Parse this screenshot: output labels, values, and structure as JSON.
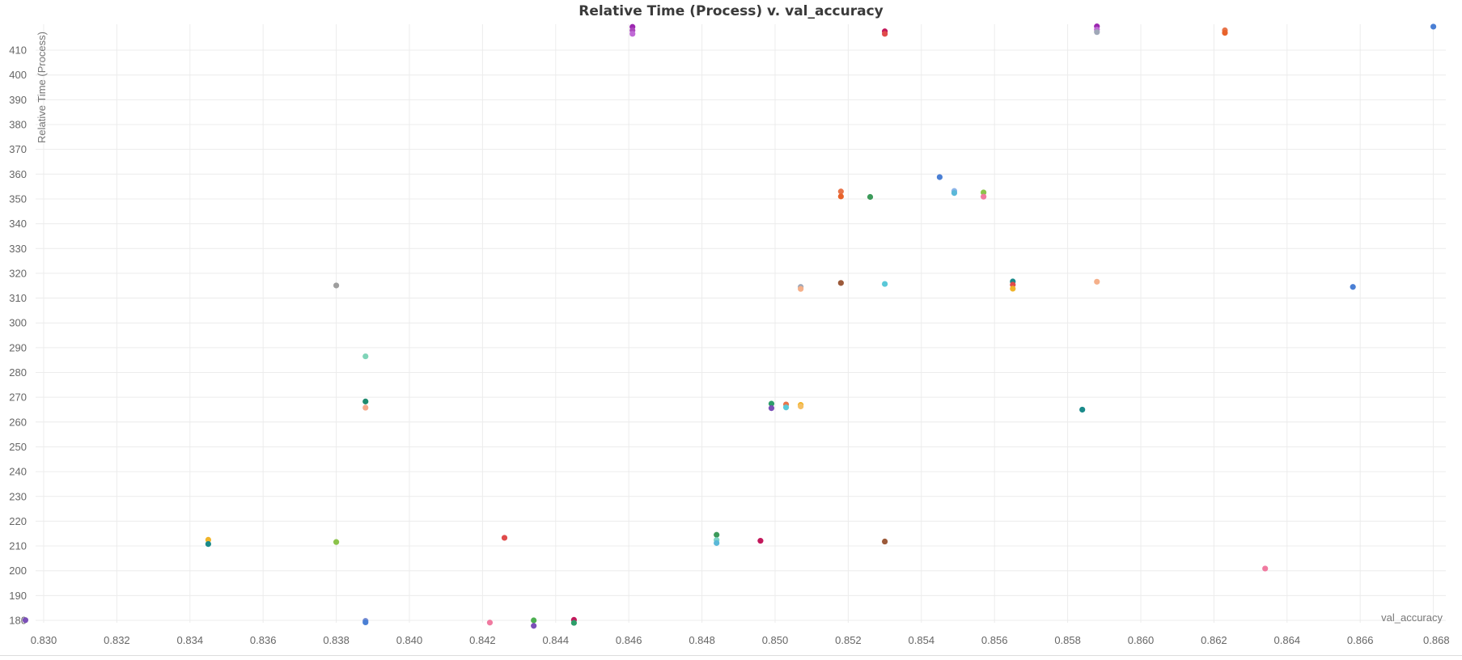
{
  "chart_data": {
    "type": "scatter",
    "title": "Relative Time (Process) v. val_accuracy",
    "xlabel": "val_accuracy",
    "ylabel": "Relative Time (Process)",
    "xlim": [
      0.8295,
      0.868
    ],
    "ylim": [
      177,
      420
    ],
    "xticks": [
      "0.830",
      "0.832",
      "0.834",
      "0.836",
      "0.838",
      "0.840",
      "0.842",
      "0.844",
      "0.846",
      "0.848",
      "0.850",
      "0.852",
      "0.854",
      "0.856",
      "0.858",
      "0.860",
      "0.862",
      "0.864",
      "0.866",
      "0.868"
    ],
    "yticks": [
      "180",
      "190",
      "200",
      "210",
      "220",
      "230",
      "240",
      "250",
      "260",
      "270",
      "280",
      "290",
      "300",
      "310",
      "320",
      "330",
      "340",
      "350",
      "360",
      "370",
      "380",
      "390",
      "400",
      "410"
    ],
    "grid": true,
    "points": [
      {
        "x": 0.8295,
        "y": 180.1,
        "color": "#7b4fb8"
      },
      {
        "x": 0.8345,
        "y": 212.5,
        "color": "#f0b429"
      },
      {
        "x": 0.8345,
        "y": 210.8,
        "color": "#1a8a8a"
      },
      {
        "x": 0.838,
        "y": 315.1,
        "color": "#9e9e9e"
      },
      {
        "x": 0.838,
        "y": 211.6,
        "color": "#8bc34a"
      },
      {
        "x": 0.8388,
        "y": 286.5,
        "color": "#7fd4b8"
      },
      {
        "x": 0.8388,
        "y": 268.3,
        "color": "#1e8a6e"
      },
      {
        "x": 0.8388,
        "y": 265.8,
        "color": "#f5a98a"
      },
      {
        "x": 0.8388,
        "y": 179.8,
        "color": "#7b8fd4"
      },
      {
        "x": 0.8388,
        "y": 179.2,
        "color": "#4a7fd4"
      },
      {
        "x": 0.8422,
        "y": 179.1,
        "color": "#f07aa0"
      },
      {
        "x": 0.8426,
        "y": 213.3,
        "color": "#e04b4b"
      },
      {
        "x": 0.8434,
        "y": 180.0,
        "color": "#4caf50"
      },
      {
        "x": 0.8434,
        "y": 177.8,
        "color": "#7b4fb8"
      },
      {
        "x": 0.8445,
        "y": 180.2,
        "color": "#c2185b"
      },
      {
        "x": 0.8445,
        "y": 179.0,
        "color": "#2e9e6a"
      },
      {
        "x": 0.8461,
        "y": 419.4,
        "color": "#9c27b0"
      },
      {
        "x": 0.8461,
        "y": 418.0,
        "color": "#ab47bc"
      },
      {
        "x": 0.8461,
        "y": 416.6,
        "color": "#c06ad6"
      },
      {
        "x": 0.8484,
        "y": 214.5,
        "color": "#3c9a5a"
      },
      {
        "x": 0.8484,
        "y": 212.4,
        "color": "#7fd4c8"
      },
      {
        "x": 0.8484,
        "y": 211.2,
        "color": "#5ab8d8"
      },
      {
        "x": 0.8496,
        "y": 212.1,
        "color": "#c2185b"
      },
      {
        "x": 0.8499,
        "y": 267.4,
        "color": "#2e9e6a"
      },
      {
        "x": 0.8499,
        "y": 265.6,
        "color": "#7b4fb8"
      },
      {
        "x": 0.8503,
        "y": 267.1,
        "color": "#e8744a"
      },
      {
        "x": 0.8503,
        "y": 265.9,
        "color": "#5ac8d8"
      },
      {
        "x": 0.8507,
        "y": 266.9,
        "color": "#f0b429"
      },
      {
        "x": 0.8507,
        "y": 266.3,
        "color": "#f5c065"
      },
      {
        "x": 0.8507,
        "y": 314.5,
        "color": "#a0a8b8"
      },
      {
        "x": 0.8507,
        "y": 313.7,
        "color": "#f5b08a"
      },
      {
        "x": 0.8518,
        "y": 353.0,
        "color": "#e8744a"
      },
      {
        "x": 0.8518,
        "y": 351.0,
        "color": "#e8622a"
      },
      {
        "x": 0.8518,
        "y": 316.1,
        "color": "#9c5a3a"
      },
      {
        "x": 0.8526,
        "y": 350.8,
        "color": "#3c9a5a"
      },
      {
        "x": 0.853,
        "y": 417.6,
        "color": "#c2185b"
      },
      {
        "x": 0.853,
        "y": 416.6,
        "color": "#e04b4b"
      },
      {
        "x": 0.853,
        "y": 315.7,
        "color": "#5ac8d8"
      },
      {
        "x": 0.853,
        "y": 211.8,
        "color": "#9c5a3a"
      },
      {
        "x": 0.8545,
        "y": 358.8,
        "color": "#4a7fd4"
      },
      {
        "x": 0.8549,
        "y": 353.2,
        "color": "#8ab4e8"
      },
      {
        "x": 0.8549,
        "y": 352.4,
        "color": "#5ab8d8"
      },
      {
        "x": 0.8557,
        "y": 352.6,
        "color": "#8bc34a"
      },
      {
        "x": 0.8557,
        "y": 350.9,
        "color": "#f07aa0"
      },
      {
        "x": 0.8565,
        "y": 316.7,
        "color": "#1a8a8a"
      },
      {
        "x": 0.8565,
        "y": 315.4,
        "color": "#e04b4b"
      },
      {
        "x": 0.8565,
        "y": 313.8,
        "color": "#f0b429"
      },
      {
        "x": 0.8584,
        "y": 265.0,
        "color": "#1a8a8a"
      },
      {
        "x": 0.8588,
        "y": 419.6,
        "color": "#9c27b0"
      },
      {
        "x": 0.8588,
        "y": 418.3,
        "color": "#c06ad6"
      },
      {
        "x": 0.8588,
        "y": 417.3,
        "color": "#a0a8b8"
      },
      {
        "x": 0.8588,
        "y": 316.6,
        "color": "#f5b08a"
      },
      {
        "x": 0.8623,
        "y": 418.0,
        "color": "#e8744a"
      },
      {
        "x": 0.8623,
        "y": 417.0,
        "color": "#e8622a"
      },
      {
        "x": 0.8634,
        "y": 200.9,
        "color": "#f07aa0"
      },
      {
        "x": 0.8658,
        "y": 314.5,
        "color": "#4a7fd4"
      },
      {
        "x": 0.868,
        "y": 419.5,
        "color": "#4a7fd4"
      }
    ]
  }
}
